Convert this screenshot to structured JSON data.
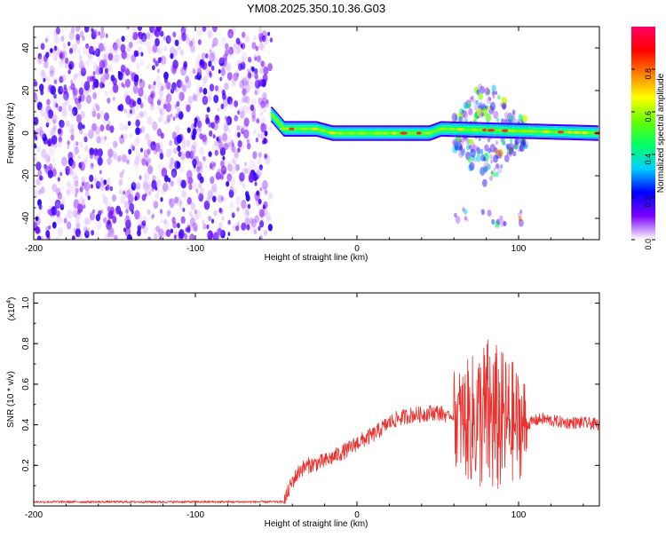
{
  "chart_data": [
    {
      "type": "heatmap",
      "title": "YM08.2025.350.10.36.G03",
      "xlabel": "Height of straight line (km)",
      "ylabel": "Frequency (Hz)",
      "xlim": [
        -200,
        150
      ],
      "ylim": [
        -50,
        50
      ],
      "x_ticks": [
        -200,
        -100,
        0,
        100
      ],
      "y_ticks": [
        -40,
        -20,
        0,
        20,
        40
      ],
      "colorbar": {
        "label": "Normalized spectral amplitude",
        "range": [
          0,
          1
        ],
        "ticks": [
          "0.0",
          "0.2",
          "0.4",
          "0.6",
          "0.8"
        ],
        "colors": [
          "#ffffff",
          "#7b00ff",
          "#0000ff",
          "#00d0ff",
          "#00ff66",
          "#66ff00",
          "#ffff00",
          "#ff8000",
          "#ff0000",
          "#ff0066"
        ]
      },
      "regions": [
        {
          "name": "noise",
          "x_range": [
            -200,
            -53
          ],
          "freq_range": [
            -50,
            50
          ],
          "amplitude": [
            0.02,
            0.12
          ]
        },
        {
          "name": "doppler-trace",
          "x_range": [
            -53,
            150
          ],
          "freq_path": [
            [
              -53,
              9
            ],
            [
              -45,
              2
            ],
            [
              -25,
              2
            ],
            [
              -15,
              0
            ],
            [
              45,
              0
            ],
            [
              52,
              2
            ],
            [
              150,
              0
            ]
          ],
          "amplitude": [
            0.4,
            0.9
          ]
        },
        {
          "name": "scatter-burst",
          "x_range": [
            60,
            105
          ],
          "freq_range": [
            -40,
            30
          ],
          "amplitude": [
            0.05,
            0.8
          ]
        }
      ]
    },
    {
      "type": "line",
      "xlabel": "Height of straight line (km)",
      "ylabel": "SNR (10 * v/v)",
      "y_multiplier": "(x10",
      "y_multiplier_exp": "4",
      "y_multiplier_close": ")",
      "xlim": [
        -200,
        150
      ],
      "ylim": [
        0,
        1.05
      ],
      "x_ticks": [
        -200,
        -100,
        0,
        100
      ],
      "y_ticks": [
        0.2,
        0.4,
        0.6,
        0.8,
        1.0
      ],
      "series": [
        {
          "name": "SNR",
          "color": "#e8302c",
          "x": [
            -200,
            -150,
            -100,
            -60,
            -45,
            -40,
            -35,
            -30,
            -25,
            -20,
            -15,
            -10,
            -5,
            0,
            5,
            10,
            15,
            20,
            25,
            30,
            35,
            40,
            45,
            50,
            55,
            60,
            65,
            70,
            75,
            80,
            85,
            90,
            95,
            100,
            105,
            110,
            115,
            120,
            130,
            140,
            150
          ],
          "values": [
            0.02,
            0.02,
            0.02,
            0.02,
            0.02,
            0.12,
            0.18,
            0.2,
            0.21,
            0.22,
            0.24,
            0.26,
            0.28,
            0.31,
            0.33,
            0.35,
            0.38,
            0.41,
            0.43,
            0.44,
            0.45,
            0.45,
            0.46,
            0.46,
            0.45,
            0.44,
            0.42,
            0.42,
            0.43,
            0.44,
            0.42,
            0.41,
            0.42,
            0.4,
            0.4,
            0.42,
            0.43,
            0.42,
            0.41,
            0.41,
            0.4
          ]
        }
      ],
      "noise_envelopes": [
        {
          "x_range": [
            -200,
            -45
          ],
          "amplitude": 0.006
        },
        {
          "x_range": [
            -45,
            55
          ],
          "amplitude": 0.04
        },
        {
          "x_range": [
            60,
            105
          ],
          "amplitude": 0.42
        },
        {
          "x_range": [
            105,
            150
          ],
          "amplitude": 0.03
        }
      ]
    }
  ]
}
